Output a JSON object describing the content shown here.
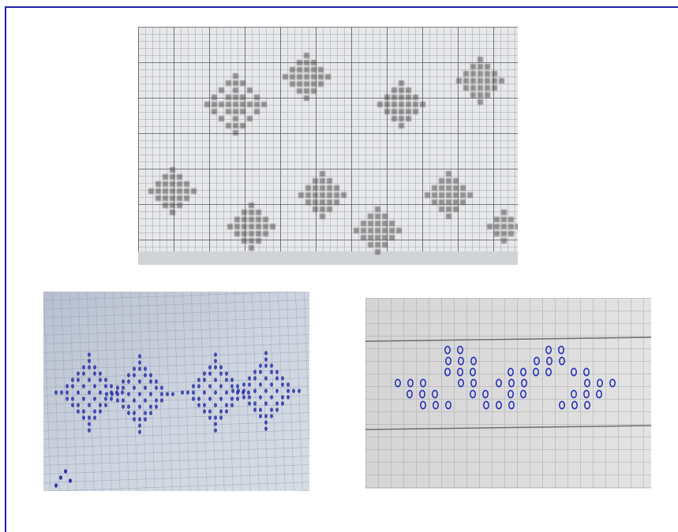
{
  "page": {
    "frame_color": "#1e22a8",
    "background": "#ffffff"
  },
  "photos": [
    {
      "id": "printed-chart",
      "icon": "printed-cross-stitch-chart-photo",
      "paper_color": "#e7e8ea",
      "grid_color": "#8d9094",
      "mark_color": "#4a4a4a"
    },
    {
      "id": "hand-drawn-star-motifs",
      "icon": "hand-drawn-star-pattern-photo",
      "paper_color": "#c9d0de",
      "grid_color": "#8e99b0",
      "mark_color": "#2b35a8"
    },
    {
      "id": "hand-drawn-border-motif",
      "icon": "hand-drawn-border-pattern-photo",
      "paper_color": "#dcdcdc",
      "grid_color": "#9a9a9a",
      "mark_color": "#2a35b5"
    }
  ]
}
